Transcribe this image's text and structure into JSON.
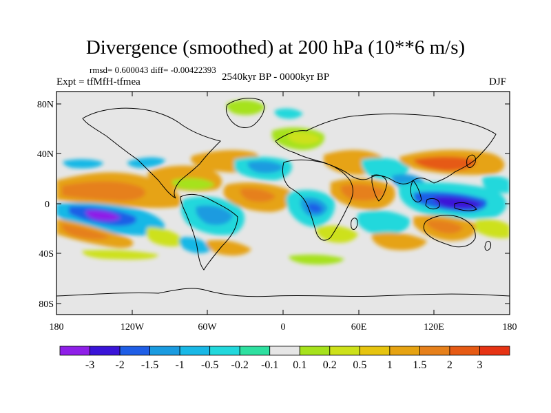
{
  "header": {
    "title": "Divergence (smoothed) at 200 hPa (10**6 m/s)",
    "stats": "rmsd= 0.600043 diff= -0.00422393",
    "expt": "Expt = tfMfH-tfmea",
    "period": "2540kyr BP - 0000kyr BP",
    "season": "DJF"
  },
  "map": {
    "lat_ticks": [
      "80N",
      "40N",
      "0",
      "40S",
      "80S"
    ],
    "lon_ticks": [
      "180",
      "120W",
      "60W",
      "0",
      "60E",
      "120E",
      "180"
    ]
  },
  "colorbar": {
    "colors": [
      "#8f1fe8",
      "#3a14d8",
      "#1f5ee6",
      "#1a9be0",
      "#19b8e6",
      "#22d8dc",
      "#2ee0a0",
      "#e6e6e6",
      "#a6e21c",
      "#cde11a",
      "#e6c40f",
      "#e6a312",
      "#e6801b",
      "#e65a14",
      "#e63314"
    ],
    "labels": [
      "-3",
      "-2",
      "-1.5",
      "-1",
      "-0.5",
      "-0.2",
      "-0.1",
      "0.1",
      "0.2",
      "0.5",
      "1",
      "1.5",
      "2",
      "3"
    ]
  },
  "styles": {
    "background": "#e6e6e6",
    "frame": "#000000"
  }
}
